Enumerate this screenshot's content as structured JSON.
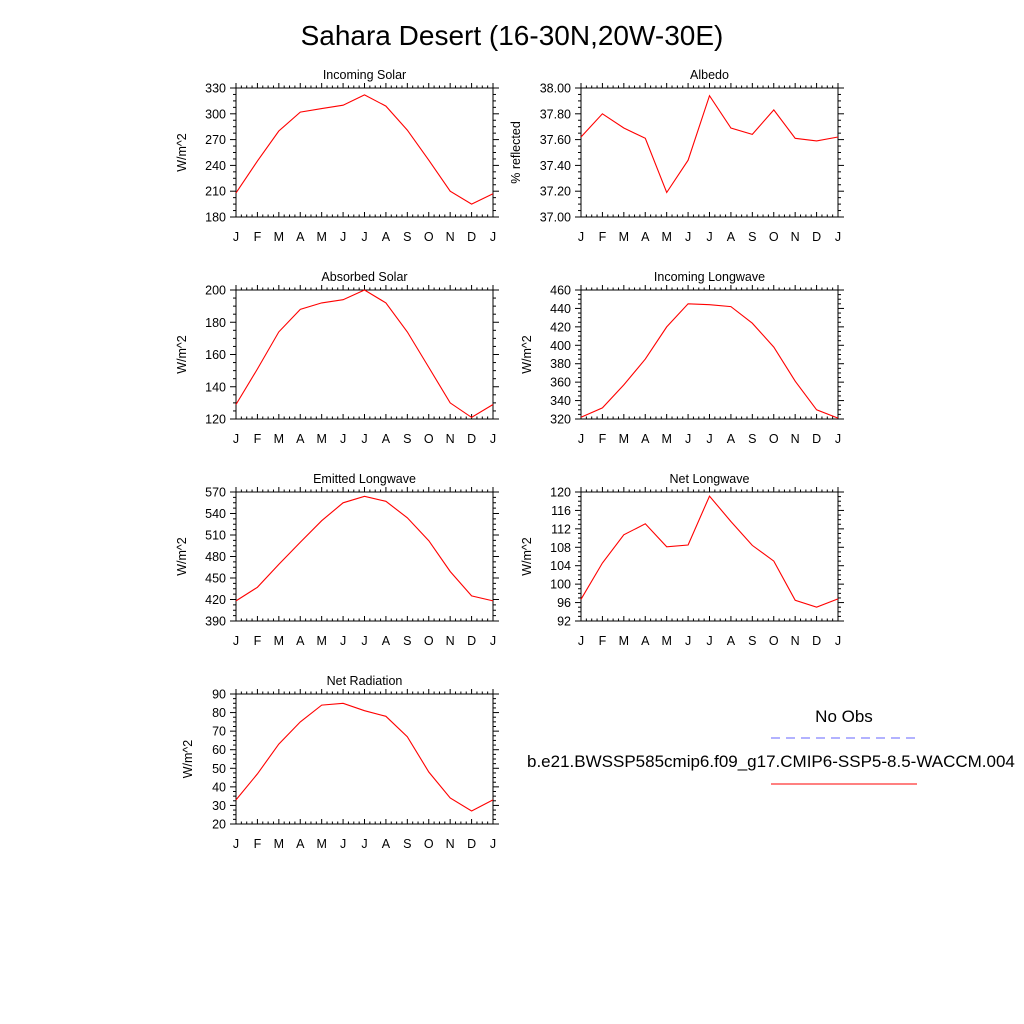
{
  "title": "Sahara Desert (16-30N,20W-30E)",
  "colors": {
    "model": "#ff0000",
    "obs": "#6666ff",
    "axis": "#000000"
  },
  "legend": {
    "obs_label": "No Obs",
    "model_label": "b.e21.BWSSP585cmip6.f09_g17.CMIP6-SSP5-8.5-WACCM.004"
  },
  "chart_data": [
    {
      "type": "line",
      "title": "Incoming Solar",
      "ylabel": "W/m^2",
      "categories": [
        "J",
        "F",
        "M",
        "A",
        "M",
        "J",
        "J",
        "A",
        "S",
        "O",
        "N",
        "D",
        "J"
      ],
      "ylim": [
        180,
        330
      ],
      "yticks": [
        "180",
        "210",
        "240",
        "270",
        "300",
        "330"
      ],
      "series": [
        {
          "values": [
            208,
            245,
            280,
            302,
            306,
            310,
            322,
            309,
            281,
            246,
            210,
            195,
            207
          ]
        }
      ]
    },
    {
      "type": "line",
      "title": "Albedo",
      "ylabel": "% reflected",
      "categories": [
        "J",
        "F",
        "M",
        "A",
        "M",
        "J",
        "J",
        "A",
        "S",
        "O",
        "N",
        "D",
        "J"
      ],
      "ylim": [
        37.0,
        38.0
      ],
      "yticks": [
        "37.00",
        "37.20",
        "37.40",
        "37.60",
        "37.80",
        "38.00"
      ],
      "series": [
        {
          "values": [
            37.62,
            37.8,
            37.69,
            37.61,
            37.19,
            37.44,
            37.94,
            37.69,
            37.64,
            37.83,
            37.61,
            37.59,
            37.62
          ]
        }
      ]
    },
    {
      "type": "line",
      "title": "Absorbed Solar",
      "ylabel": "W/m^2",
      "categories": [
        "J",
        "F",
        "M",
        "A",
        "M",
        "J",
        "J",
        "A",
        "S",
        "O",
        "N",
        "D",
        "J"
      ],
      "ylim": [
        120,
        200
      ],
      "yticks": [
        "120",
        "140",
        "160",
        "180",
        "200"
      ],
      "series": [
        {
          "values": [
            129,
            151,
            174,
            188,
            192,
            194,
            200,
            192,
            174,
            152,
            130,
            121,
            129
          ]
        }
      ]
    },
    {
      "type": "line",
      "title": "Incoming Longwave",
      "ylabel": "W/m^2",
      "categories": [
        "J",
        "F",
        "M",
        "A",
        "M",
        "J",
        "J",
        "A",
        "S",
        "O",
        "N",
        "D",
        "J"
      ],
      "ylim": [
        320,
        460
      ],
      "yticks": [
        "320",
        "340",
        "360",
        "380",
        "400",
        "420",
        "440",
        "460"
      ],
      "series": [
        {
          "values": [
            322,
            332,
            357,
            385,
            420,
            445,
            444,
            442,
            424,
            398,
            361,
            330,
            321
          ]
        }
      ]
    },
    {
      "type": "line",
      "title": "Emitted Longwave",
      "ylabel": "W/m^2",
      "categories": [
        "J",
        "F",
        "M",
        "A",
        "M",
        "J",
        "J",
        "A",
        "S",
        "O",
        "N",
        "D",
        "J"
      ],
      "ylim": [
        390,
        570
      ],
      "yticks": [
        "390",
        "420",
        "450",
        "480",
        "510",
        "540",
        "570"
      ],
      "series": [
        {
          "values": [
            418,
            437,
            469,
            500,
            530,
            555,
            564,
            557,
            534,
            502,
            459,
            425,
            418
          ]
        }
      ]
    },
    {
      "type": "line",
      "title": "Net Longwave",
      "ylabel": "W/m^2",
      "categories": [
        "J",
        "F",
        "M",
        "A",
        "M",
        "J",
        "J",
        "A",
        "S",
        "O",
        "N",
        "D",
        "J"
      ],
      "ylim": [
        92,
        120
      ],
      "yticks": [
        "92",
        "96",
        "100",
        "104",
        "108",
        "112",
        "116",
        "120"
      ],
      "series": [
        {
          "values": [
            96.7,
            104.6,
            110.7,
            113.1,
            108.1,
            108.5,
            119.1,
            113.6,
            108.4,
            105.0,
            96.5,
            95.0,
            96.8
          ]
        }
      ]
    },
    {
      "type": "line",
      "title": "Net Radiation",
      "ylabel": "W/m^2",
      "categories": [
        "J",
        "F",
        "M",
        "A",
        "M",
        "J",
        "J",
        "A",
        "S",
        "O",
        "N",
        "D",
        "J"
      ],
      "ylim": [
        20,
        90
      ],
      "yticks": [
        "20",
        "30",
        "40",
        "50",
        "60",
        "70",
        "80",
        "90"
      ],
      "series": [
        {
          "values": [
            33,
            47,
            63,
            75,
            84,
            85,
            81,
            78,
            67,
            48,
            34,
            27,
            33
          ]
        }
      ]
    }
  ]
}
